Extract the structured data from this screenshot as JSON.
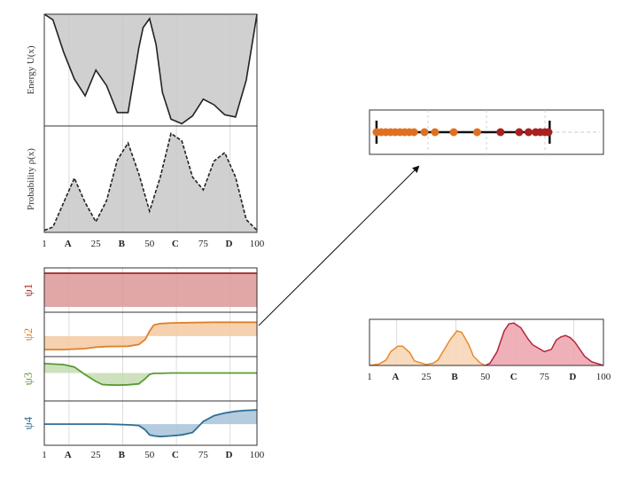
{
  "chart_data": [
    {
      "type": "area",
      "panel": "energy",
      "ylabel": "Energy   U(x)",
      "xlim": [
        1,
        100
      ],
      "ylim": [
        0,
        1
      ],
      "x": [
        1,
        5,
        10,
        15,
        20,
        25,
        30,
        35,
        40,
        45,
        47,
        50,
        53,
        56,
        60,
        65,
        70,
        75,
        80,
        85,
        90,
        95,
        100
      ],
      "values": [
        1.0,
        0.95,
        0.66,
        0.42,
        0.27,
        0.5,
        0.36,
        0.12,
        0.12,
        0.7,
        0.88,
        0.96,
        0.73,
        0.3,
        0.06,
        0.02,
        0.09,
        0.24,
        0.19,
        0.1,
        0.08,
        0.41,
        1.0
      ],
      "line_style": "solid",
      "fill": "#c8c8c8",
      "grid": true
    },
    {
      "type": "area",
      "panel": "probability",
      "ylabel": "Probability   ρ(x)",
      "xlim": [
        1,
        100
      ],
      "ylim": [
        0,
        1
      ],
      "x": [
        1,
        5,
        10,
        15,
        20,
        25,
        30,
        35,
        40,
        45,
        50,
        55,
        60,
        65,
        70,
        75,
        80,
        85,
        90,
        95,
        100
      ],
      "values": [
        0.02,
        0.05,
        0.28,
        0.51,
        0.28,
        0.1,
        0.3,
        0.68,
        0.84,
        0.55,
        0.2,
        0.52,
        0.93,
        0.86,
        0.52,
        0.4,
        0.67,
        0.75,
        0.52,
        0.12,
        0.02
      ],
      "line_style": "dashed",
      "fill": "#c8c8c8",
      "grid": true,
      "xticks": [
        {
          "value": 1,
          "label": "1",
          "bold": false
        },
        {
          "value": 12,
          "label": "A",
          "bold": true
        },
        {
          "value": 25,
          "label": "25",
          "bold": false
        },
        {
          "value": 37,
          "label": "B",
          "bold": true
        },
        {
          "value": 50,
          "label": "50",
          "bold": false
        },
        {
          "value": 62,
          "label": "C",
          "bold": true
        },
        {
          "value": 75,
          "label": "75",
          "bold": false
        },
        {
          "value": 87,
          "label": "D",
          "bold": true
        },
        {
          "value": 100,
          "label": "100",
          "bold": false
        }
      ]
    },
    {
      "type": "area",
      "panel": "psi",
      "xlim": [
        1,
        100
      ],
      "grid": true,
      "series": [
        {
          "name": "ψ1",
          "color": "#a52525",
          "fill": "#dc9898",
          "x": [
            1,
            100
          ],
          "values": [
            1.0,
            1.0
          ],
          "ylim": [
            0,
            1
          ],
          "baseline": 0.45
        },
        {
          "name": "ψ2",
          "color": "#e0802a",
          "fill": "#f5c9a1",
          "x": [
            1,
            10,
            20,
            25,
            30,
            40,
            45,
            48,
            50,
            52,
            55,
            60,
            70,
            80,
            90,
            100
          ],
          "values": [
            0.05,
            0.05,
            0.08,
            0.12,
            0.14,
            0.15,
            0.2,
            0.35,
            0.6,
            0.78,
            0.82,
            0.84,
            0.85,
            0.86,
            0.86,
            0.86
          ],
          "ylim": [
            0,
            1
          ],
          "baseline": 0.45
        },
        {
          "name": "ψ3",
          "color": "#5a9a32",
          "fill": "#c5dcb2",
          "x": [
            1,
            10,
            15,
            20,
            25,
            28,
            30,
            35,
            40,
            45,
            48,
            50,
            52,
            55,
            60,
            70,
            80,
            90,
            100
          ],
          "values": [
            0.95,
            0.92,
            0.85,
            0.62,
            0.42,
            0.33,
            0.32,
            0.31,
            0.32,
            0.35,
            0.5,
            0.63,
            0.66,
            0.66,
            0.67,
            0.67,
            0.67,
            0.67,
            0.67
          ],
          "ylim": [
            0,
            1
          ],
          "baseline": 0.67
        },
        {
          "name": "ψ4",
          "color": "#2f6e96",
          "fill": "#a7c3d8",
          "x": [
            1,
            10,
            20,
            30,
            40,
            45,
            48,
            50,
            52,
            55,
            60,
            65,
            70,
            72,
            75,
            80,
            85,
            90,
            95,
            100
          ],
          "values": [
            0.47,
            0.47,
            0.47,
            0.47,
            0.45,
            0.43,
            0.3,
            0.15,
            0.12,
            0.1,
            0.12,
            0.15,
            0.22,
            0.35,
            0.55,
            0.72,
            0.8,
            0.85,
            0.88,
            0.89
          ],
          "ylim": [
            0,
            1
          ],
          "baseline": 0.47
        }
      ],
      "xticks": [
        {
          "value": 1,
          "label": "1",
          "bold": false
        },
        {
          "value": 12,
          "label": "A",
          "bold": true
        },
        {
          "value": 25,
          "label": "25",
          "bold": false
        },
        {
          "value": 37,
          "label": "B",
          "bold": true
        },
        {
          "value": 50,
          "label": "50",
          "bold": false
        },
        {
          "value": 62,
          "label": "C",
          "bold": true
        },
        {
          "value": 75,
          "label": "75",
          "bold": false
        },
        {
          "value": 87,
          "label": "D",
          "bold": true
        },
        {
          "value": 100,
          "label": "100",
          "bold": false
        }
      ]
    },
    {
      "type": "scatter",
      "panel": "projection-1d",
      "xlim": [
        0,
        1
      ],
      "range_markers": [
        0.03,
        0.77
      ],
      "points": [
        {
          "x": 0.03,
          "color": "#e07020"
        },
        {
          "x": 0.05,
          "color": "#e07020"
        },
        {
          "x": 0.07,
          "color": "#e07020"
        },
        {
          "x": 0.09,
          "color": "#e07020"
        },
        {
          "x": 0.11,
          "color": "#e07020"
        },
        {
          "x": 0.13,
          "color": "#e07020"
        },
        {
          "x": 0.15,
          "color": "#e07020"
        },
        {
          "x": 0.17,
          "color": "#e07020"
        },
        {
          "x": 0.19,
          "color": "#e07020"
        },
        {
          "x": 0.235,
          "color": "#e07020"
        },
        {
          "x": 0.28,
          "color": "#e07020"
        },
        {
          "x": 0.36,
          "color": "#e07020"
        },
        {
          "x": 0.46,
          "color": "#e07020"
        },
        {
          "x": 0.56,
          "color": "#aa1f1f"
        },
        {
          "x": 0.64,
          "color": "#aa1f1f"
        },
        {
          "x": 0.68,
          "color": "#aa1f1f"
        },
        {
          "x": 0.71,
          "color": "#aa1f1f"
        },
        {
          "x": 0.73,
          "color": "#aa1f1f"
        },
        {
          "x": 0.75,
          "color": "#aa1f1f"
        },
        {
          "x": 0.765,
          "color": "#aa1f1f"
        }
      ],
      "grid": true
    },
    {
      "type": "area",
      "panel": "density-1d",
      "xlim": [
        1,
        100
      ],
      "ylim": [
        0,
        1
      ],
      "series": [
        {
          "name": "orange",
          "color": "#e8892e",
          "fill": "#f7d3b3",
          "x": [
            1,
            5,
            8,
            10,
            13,
            15,
            18,
            20,
            25,
            28,
            30,
            35,
            38,
            40,
            43,
            45,
            48,
            50
          ],
          "values": [
            0.0,
            0.03,
            0.12,
            0.3,
            0.42,
            0.42,
            0.28,
            0.1,
            0.02,
            0.05,
            0.12,
            0.55,
            0.75,
            0.72,
            0.45,
            0.2,
            0.05,
            0.0
          ]
        },
        {
          "name": "red",
          "color": "#b3283a",
          "fill": "#eda2ad",
          "x": [
            50,
            52,
            55,
            58,
            60,
            62,
            65,
            68,
            70,
            75,
            78,
            80,
            82,
            84,
            86,
            88,
            90,
            92,
            95,
            100
          ],
          "values": [
            0.0,
            0.05,
            0.3,
            0.75,
            0.9,
            0.92,
            0.82,
            0.58,
            0.45,
            0.3,
            0.35,
            0.55,
            0.62,
            0.65,
            0.6,
            0.5,
            0.35,
            0.2,
            0.08,
            0.0
          ]
        }
      ],
      "grid": true,
      "xticks": [
        {
          "value": 1,
          "label": "1",
          "bold": false
        },
        {
          "value": 12,
          "label": "A",
          "bold": true
        },
        {
          "value": 25,
          "label": "25",
          "bold": false
        },
        {
          "value": 37,
          "label": "B",
          "bold": true
        },
        {
          "value": 50,
          "label": "50",
          "bold": false
        },
        {
          "value": 62,
          "label": "C",
          "bold": true
        },
        {
          "value": 75,
          "label": "75",
          "bold": false
        },
        {
          "value": 87,
          "label": "D",
          "bold": true
        },
        {
          "value": 100,
          "label": "100",
          "bold": false
        }
      ]
    }
  ]
}
